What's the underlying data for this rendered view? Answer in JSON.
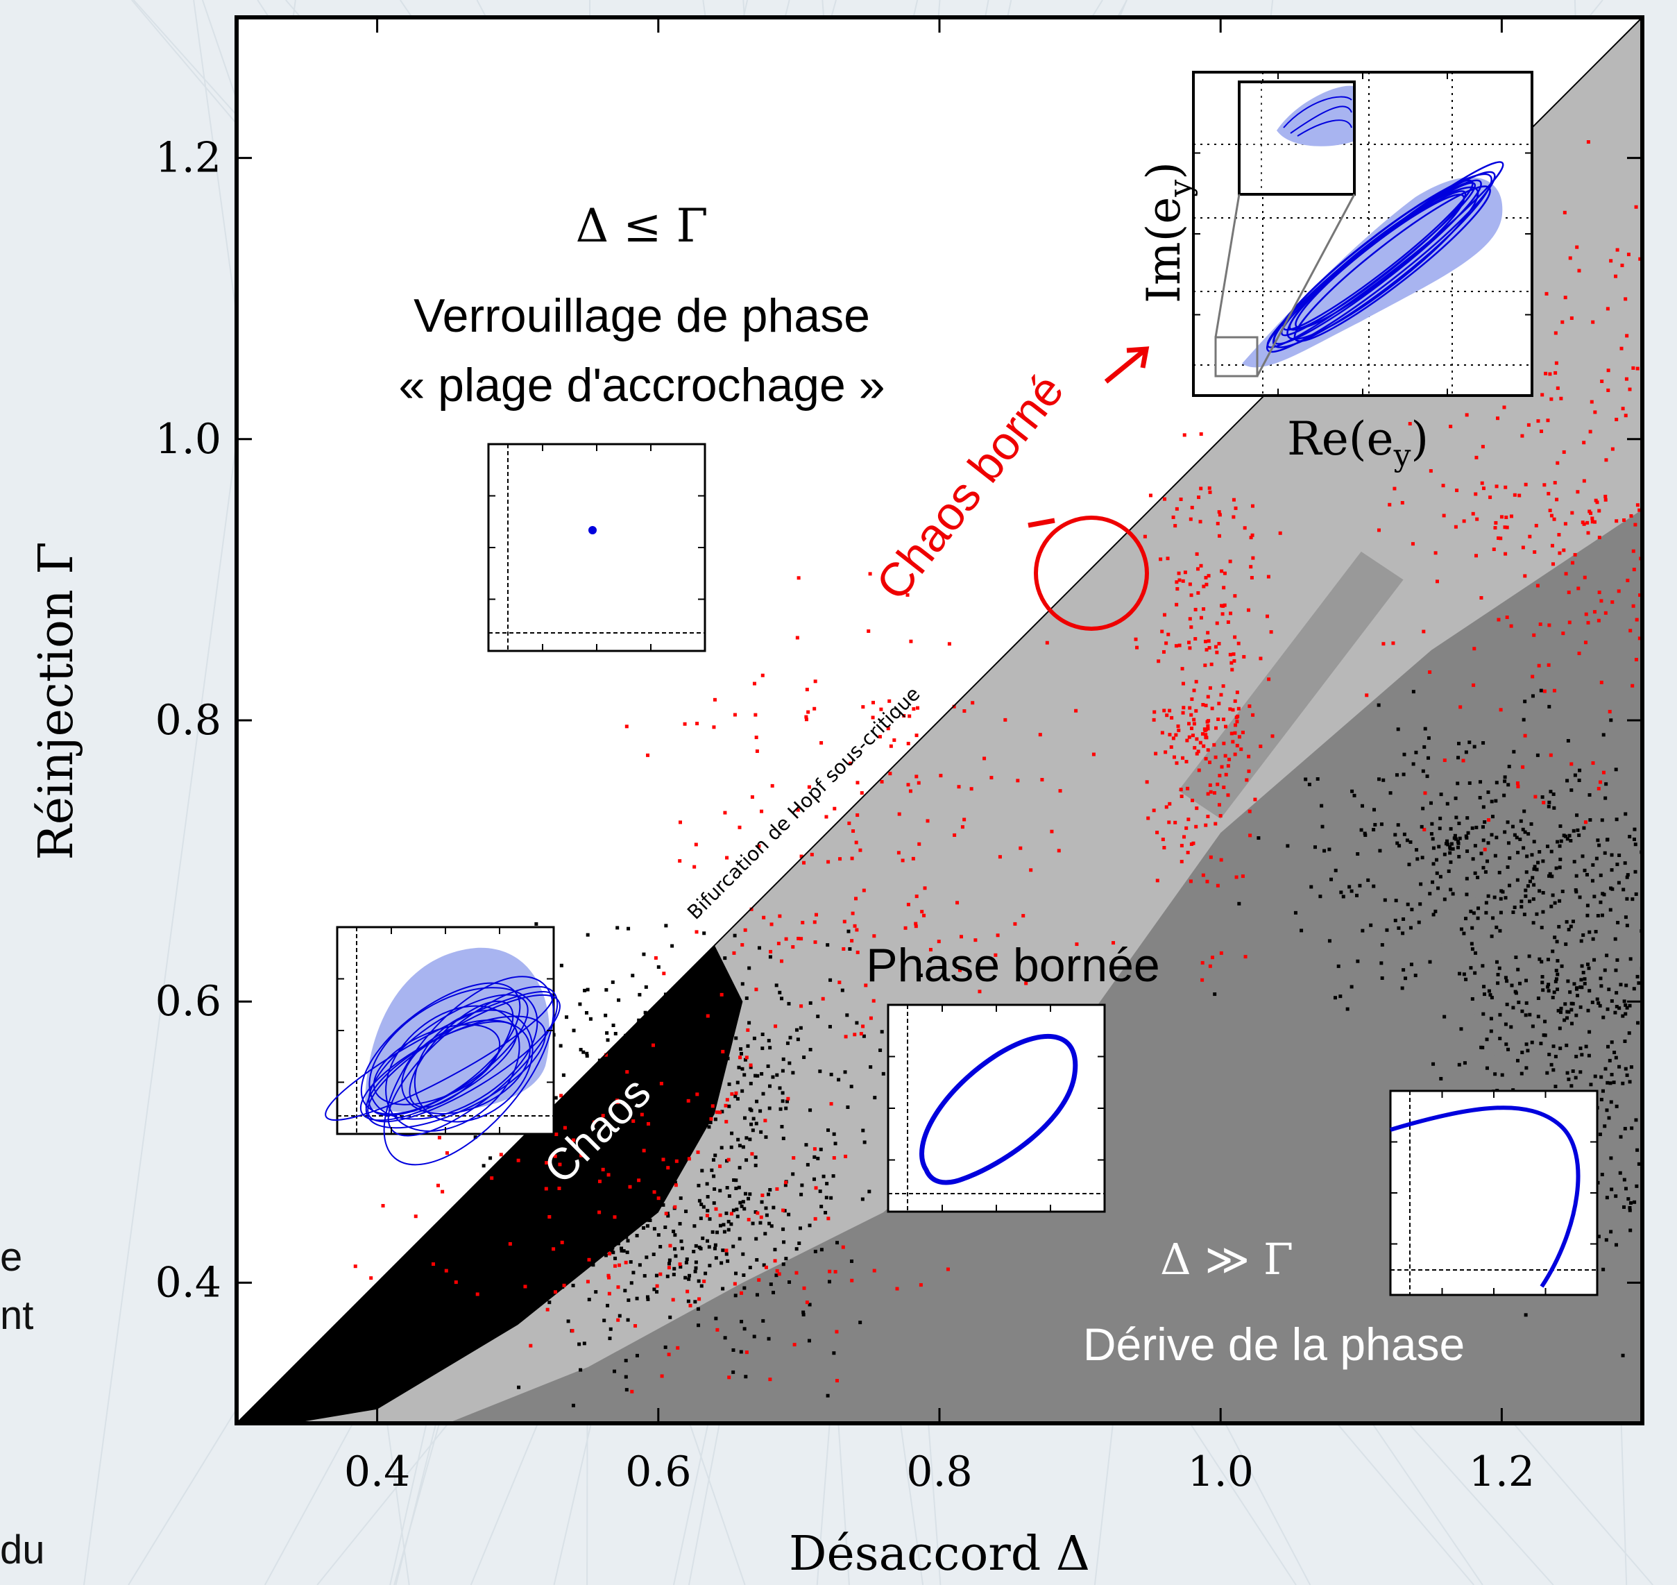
{
  "page": {
    "cut_text_fragments": [
      "e",
      "nt",
      "du"
    ]
  },
  "chart_data": {
    "type": "heatmap",
    "xlabel": "Désaccord Δ",
    "ylabel": "Réinjection Γ",
    "xlim": [
      0.3,
      1.3
    ],
    "ylim": [
      0.3,
      1.3
    ],
    "xticks": [
      "0.4",
      "0.6",
      "0.8",
      "1.0",
      "1.2"
    ],
    "xtick_values": [
      0.4,
      0.6,
      0.8,
      1.0,
      1.2
    ],
    "yticks": [
      "0.4",
      "0.6",
      "0.8",
      "1.0",
      "1.2"
    ],
    "ytick_values": [
      0.4,
      0.6,
      0.8,
      1.0,
      1.2
    ],
    "grid": false,
    "boundary_line": {
      "from": [
        0.3,
        0.3
      ],
      "to": [
        1.3,
        1.3
      ]
    },
    "regions": [
      {
        "key": "locking",
        "color": "#ffffff",
        "description": "Δ ≤ Γ"
      },
      {
        "key": "bounded_phase",
        "color": "#b8b8b8"
      },
      {
        "key": "drift",
        "color": "#848484"
      },
      {
        "key": "chaos",
        "color": "#000000"
      },
      {
        "key": "bounded_chaos",
        "color": "#ff0000"
      }
    ],
    "annotations": {
      "lock_condition": "Δ ≤ Γ",
      "lock_title": "Verrouillage de phase",
      "lock_subtitle": "« plage d'accrochage »",
      "hopf": "Bifurcation de Hopf sous-critique",
      "chaos": "Chaos",
      "chaos_borne": "Chaos borné",
      "phase_bornee": "Phase bornée",
      "drift_condition": "Δ ≫ Γ",
      "drift_title": "Dérive de la phase",
      "inset_xlabel": "Re(e",
      "inset_ylabel": "Im(e",
      "inset_sub": "y",
      "inset_close": ")"
    },
    "colors": {
      "orbit": "#0000dd",
      "orbit_fill": "#a8b4f0",
      "highlight": "#ee0000",
      "axis": "#000000"
    }
  }
}
